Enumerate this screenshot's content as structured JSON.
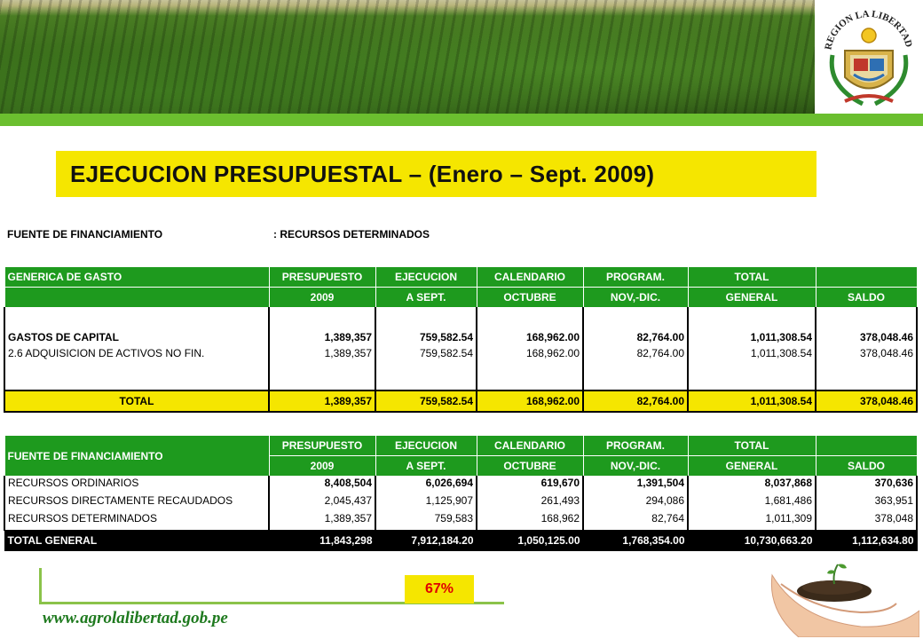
{
  "header": {
    "crest_text": "REGION LA LIBERTAD"
  },
  "title": "EJECUCION PRESUPUESTAL – (Enero – Sept. 2009)",
  "source": {
    "label": "FUENTE DE FINANCIAMIENTO",
    "value": ": RECURSOS DETERMINADOS"
  },
  "table1": {
    "header_row1": [
      "GENERICA DE GASTO",
      "PRESUPUESTO",
      "EJECUCION",
      "CALENDARIO",
      "PROGRAM.",
      "TOTAL",
      ""
    ],
    "header_row2": [
      "",
      "2009",
      "A SEPT.",
      "OCTUBRE",
      "NOV,-DIC.",
      "GENERAL",
      "SALDO"
    ],
    "rows": [
      {
        "label": "GASTOS DE CAPITAL",
        "values": [
          "1,389,357",
          "759,582.54",
          "168,962.00",
          "82,764.00",
          "1,011,308.54",
          "378,048.46"
        ]
      },
      {
        "label": "2.6 ADQUISICION DE ACTIVOS NO FIN.",
        "values": [
          "1,389,357",
          "759,582.54",
          "168,962.00",
          "82,764.00",
          "1,011,308.54",
          "378,048.46"
        ]
      }
    ],
    "total": {
      "label": "TOTAL",
      "values": [
        "1,389,357",
        "759,582.54",
        "168,962.00",
        "82,764.00",
        "1,011,308.54",
        "378,048.46"
      ]
    }
  },
  "table2": {
    "header_row1": [
      "FUENTE DE FINANCIAMIENTO",
      "PRESUPUESTO",
      "EJECUCION",
      "CALENDARIO",
      "PROGRAM.",
      "TOTAL",
      ""
    ],
    "header_row2": [
      "",
      "2009",
      "A SEPT.",
      "OCTUBRE",
      "NOV,-DIC.",
      "GENERAL",
      "SALDO"
    ],
    "rows": [
      {
        "label": "RECURSOS ORDINARIOS",
        "values": [
          "8,408,504",
          "6,026,694",
          "619,670",
          "1,391,504",
          "8,037,868",
          "370,636"
        ]
      },
      {
        "label": "RECURSOS DIRECTAMENTE RECAUDADOS",
        "values": [
          "2,045,437",
          "1,125,907",
          "261,493",
          "294,086",
          "1,681,486",
          "363,951"
        ]
      },
      {
        "label": "RECURSOS DETERMINADOS",
        "values": [
          "1,389,357",
          "759,583",
          "168,962",
          "82,764",
          "1,011,309",
          "378,048"
        ]
      }
    ],
    "total": {
      "label": "TOTAL  GENERAL",
      "values": [
        "11,843,298",
        "7,912,184.20",
        "1,050,125.00",
        "1,768,354.00",
        "10,730,663.20",
        "1,112,634.80"
      ]
    }
  },
  "percent": "67%",
  "website": "www.agrolalibertad.gob.pe",
  "colors": {
    "accent_yellow": "#f5e600",
    "header_green": "#1e9a1e",
    "percent_red": "#e00000",
    "website_green": "#1f7a1f"
  }
}
